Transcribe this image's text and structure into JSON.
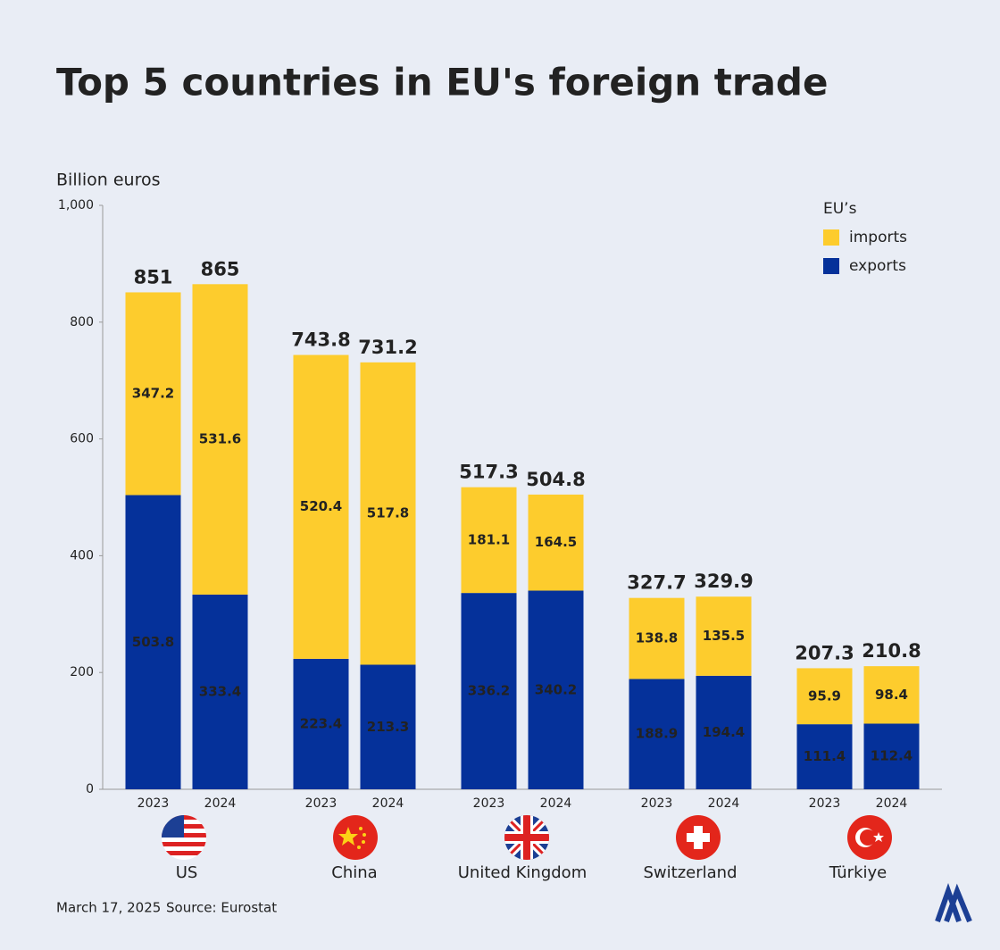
{
  "chart_data": {
    "type": "stacked_bar",
    "title": "Top 5 countries in EU's foreign trade",
    "y_label": "Billion euros",
    "legend_title": "EU’s",
    "groups": [
      "US",
      "China",
      "United Kingdom",
      "Switzerland",
      "Türkiye"
    ],
    "categories": [
      "2023",
      "2024",
      "2023",
      "2024",
      "2023",
      "2024",
      "2023",
      "2024",
      "2023",
      "2024"
    ],
    "series": [
      {
        "name": "exports",
        "color": "#05319a",
        "values": [
          503.8,
          333.4,
          223.4,
          213.3,
          336.2,
          340.2,
          188.9,
          194.4,
          111.4,
          112.4
        ]
      },
      {
        "name": "imports",
        "color": "#fdcc2d",
        "values": [
          347.2,
          531.6,
          520.4,
          517.8,
          181.1,
          164.5,
          138.8,
          135.5,
          95.9,
          98.4
        ]
      }
    ],
    "totals": [
      851,
      865,
      743.8,
      731.2,
      517.3,
      504.8,
      327.7,
      329.9,
      207.3,
      210.8
    ],
    "ylim": [
      0,
      1000
    ],
    "yticks": [
      0,
      200,
      400,
      600,
      800,
      {
        "value": 1000,
        "label": "1,000"
      }
    ]
  },
  "footer": {
    "date": "March 17, 2025",
    "source": "Source: Eurostat"
  }
}
